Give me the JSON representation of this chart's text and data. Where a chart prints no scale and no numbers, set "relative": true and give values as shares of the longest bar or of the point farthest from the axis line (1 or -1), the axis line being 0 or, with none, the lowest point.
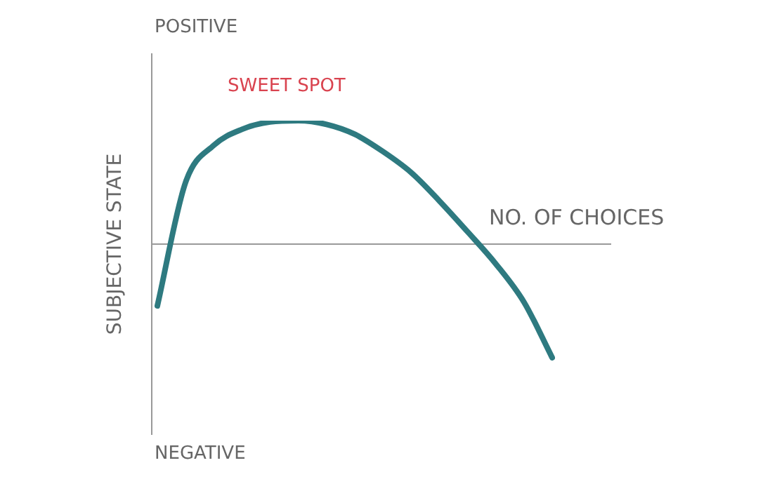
{
  "chart_data": {
    "type": "line",
    "relative": true,
    "xlabel": "NO. OF CHOICES",
    "ylabel": "SUBJECTIVE STATE",
    "annotations": [
      "POSITIVE",
      "NEGATIVE",
      "SWEET SPOT"
    ],
    "marker": "none",
    "line_style": "solid",
    "categories": [
      null,
      null,
      null,
      null,
      null,
      null,
      null,
      null,
      null,
      null,
      null,
      null,
      null,
      null,
      null
    ],
    "series": [
      {
        "color": "#2e7a80",
        "values": [
          -0.5,
          0.5,
          0.8,
          0.93,
          0.99,
          1.0,
          0.97,
          0.89,
          0.75,
          0.58,
          0.35,
          0.1,
          -0.16,
          -0.47,
          -0.92
        ]
      }
    ]
  }
}
